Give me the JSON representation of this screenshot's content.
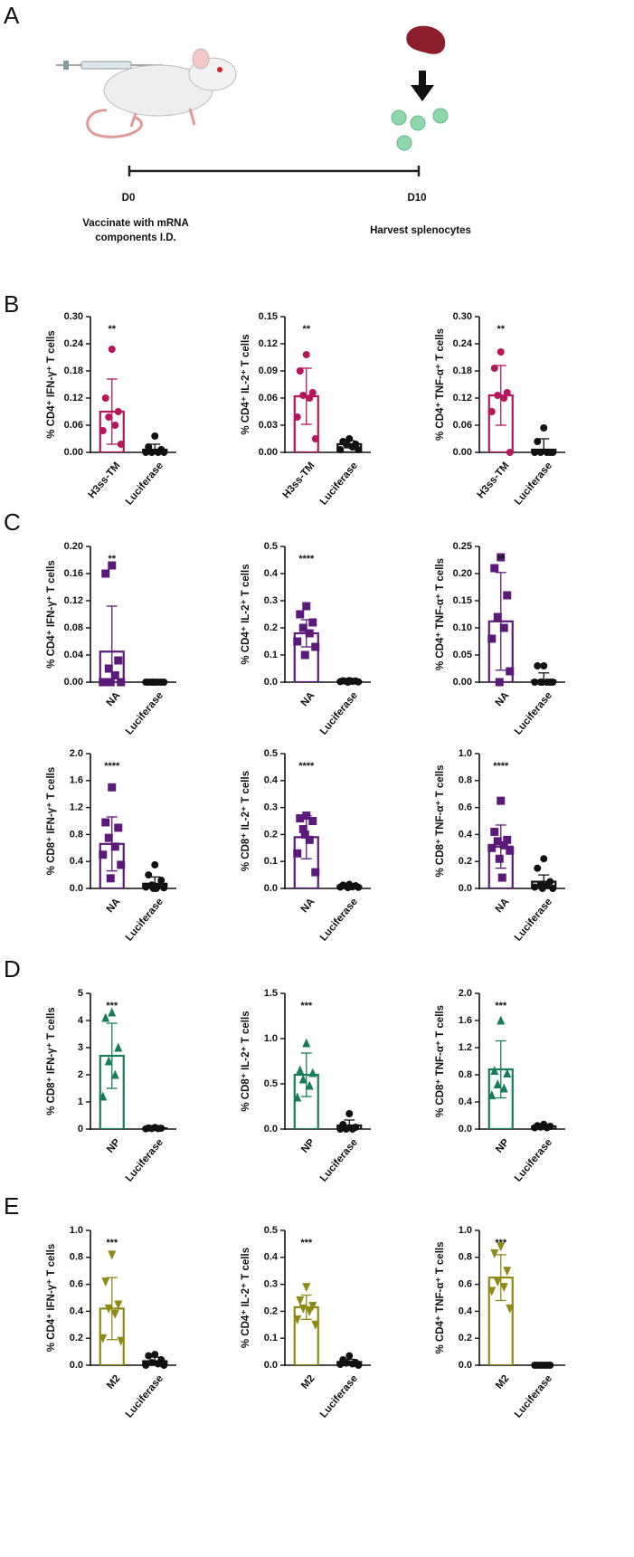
{
  "panel_labels": [
    "A",
    "B",
    "C",
    "D",
    "E"
  ],
  "diagram": {
    "start": "D0",
    "end": "D10",
    "start_caption": [
      "Vaccinate with mRNA",
      "components I.D."
    ],
    "end_caption": "Harvest splenocytes"
  },
  "chart_data": [
    {
      "type": "bar",
      "ylabel": "% CD4⁺ IFN-γ⁺ T cells",
      "categories": [
        "H3ss-TM",
        "Luciferase"
      ],
      "values": [
        0.09,
        0.006
      ],
      "errors": [
        0.072,
        0.012
      ],
      "points": [
        [
          0.228,
          0.12,
          0.09,
          0.078,
          0.06,
          0.048,
          0.018
        ],
        [
          0.036,
          0.012,
          0.006,
          0,
          0,
          0,
          0
        ]
      ],
      "colors": [
        "#b5175a",
        "#111111"
      ],
      "markers": [
        "circle",
        "circle"
      ],
      "annotation": "**",
      "ylim": [
        0,
        0.3
      ],
      "yticks": [
        {
          "value": 0,
          "label": "0.00"
        },
        {
          "value": 0.06,
          "label": "0.06"
        },
        {
          "value": 0.12,
          "label": "0.12"
        },
        {
          "value": 0.18,
          "label": "0.18"
        },
        {
          "value": 0.24,
          "label": "0.24"
        },
        {
          "value": 0.3,
          "label": "0.30"
        }
      ]
    },
    {
      "type": "bar",
      "ylabel": "% CD4⁺ IL-2⁺ T cells",
      "categories": [
        "H3ss-TM",
        "Luciferase"
      ],
      "values": [
        0.062,
        0.009
      ],
      "errors": [
        0.031,
        0.004
      ],
      "points": [
        [
          0.108,
          0.09,
          0.066,
          0.063,
          0.06,
          0.039,
          0.015
        ],
        [
          0.015,
          0.012,
          0.009,
          0.009,
          0.006,
          0.003,
          0.003
        ]
      ],
      "colors": [
        "#b5175a",
        "#111111"
      ],
      "markers": [
        "circle",
        "circle"
      ],
      "annotation": "**",
      "ylim": [
        0,
        0.15
      ],
      "yticks": [
        {
          "value": 0,
          "label": "0.00"
        },
        {
          "value": 0.03,
          "label": "0.03"
        },
        {
          "value": 0.06,
          "label": "0.06"
        },
        {
          "value": 0.09,
          "label": "0.09"
        },
        {
          "value": 0.12,
          "label": "0.12"
        },
        {
          "value": 0.15,
          "label": "0.15"
        }
      ]
    },
    {
      "type": "bar",
      "ylabel": "% CD4⁺ TNF-α⁺ T cells",
      "categories": [
        "H3ss-TM",
        "Luciferase"
      ],
      "values": [
        0.126,
        0.006
      ],
      "errors": [
        0.066,
        0.024
      ],
      "points": [
        [
          0.222,
          0.186,
          0.132,
          0.126,
          0.12,
          0.09,
          0
        ],
        [
          0.054,
          0.024,
          0,
          0,
          0,
          0,
          0
        ]
      ],
      "colors": [
        "#b5175a",
        "#111111"
      ],
      "markers": [
        "circle",
        "circle"
      ],
      "annotation": "**",
      "ylim": [
        0,
        0.3
      ],
      "yticks": [
        {
          "value": 0,
          "label": "0.00"
        },
        {
          "value": 0.06,
          "label": "0.06"
        },
        {
          "value": 0.12,
          "label": "0.12"
        },
        {
          "value": 0.18,
          "label": "0.18"
        },
        {
          "value": 0.24,
          "label": "0.24"
        },
        {
          "value": 0.3,
          "label": "0.30"
        }
      ]
    },
    {
      "type": "bar",
      "ylabel": "% CD4⁺ IFN-γ⁺ T cells",
      "categories": [
        "NA",
        "Luciferase"
      ],
      "values": [
        0.045,
        0
      ],
      "errors": [
        0.067,
        0
      ],
      "points": [
        [
          0.172,
          0.16,
          0.032,
          0.02,
          0.01,
          0,
          0,
          0
        ],
        [
          0,
          0,
          0,
          0,
          0,
          0,
          0,
          0
        ]
      ],
      "colors": [
        "#5b1a7a",
        "#111111"
      ],
      "markers": [
        "square",
        "circle"
      ],
      "annotation": "**",
      "ylim": [
        0,
        0.2
      ],
      "yticks": [
        {
          "value": 0,
          "label": "0.00"
        },
        {
          "value": 0.04,
          "label": "0.04"
        },
        {
          "value": 0.08,
          "label": "0.08"
        },
        {
          "value": 0.12,
          "label": "0.12"
        },
        {
          "value": 0.16,
          "label": "0.16"
        },
        {
          "value": 0.2,
          "label": "0.20"
        }
      ]
    },
    {
      "type": "bar",
      "ylabel": "% CD4⁺ IL-2⁺ T cells",
      "categories": [
        "NA",
        "Luciferase"
      ],
      "values": [
        0.18,
        0.003
      ],
      "errors": [
        0.05,
        0.002
      ],
      "points": [
        [
          0.28,
          0.25,
          0.22,
          0.2,
          0.18,
          0.15,
          0.13,
          0.1
        ],
        [
          0.006,
          0.005,
          0.004,
          0.003,
          0.003,
          0.002,
          0.001,
          0
        ]
      ],
      "colors": [
        "#5b1a7a",
        "#111111"
      ],
      "markers": [
        "square",
        "circle"
      ],
      "annotation": "****",
      "ylim": [
        0,
        0.5
      ],
      "yticks": [
        {
          "value": 0,
          "label": "0.0"
        },
        0.1,
        0.2,
        0.3,
        0.4,
        0.5
      ]
    },
    {
      "type": "bar",
      "ylabel": "% CD4⁺ TNF-α⁺ T cells",
      "categories": [
        "NA",
        "Luciferase"
      ],
      "values": [
        0.112,
        0.003
      ],
      "errors": [
        0.09,
        0.014
      ],
      "points": [
        [
          0.23,
          0.21,
          0.16,
          0.12,
          0.1,
          0.08,
          0.02,
          0
        ],
        [
          0.03,
          0.03,
          0,
          0,
          0,
          0,
          0,
          0
        ]
      ],
      "colors": [
        "#5b1a7a",
        "#111111"
      ],
      "markers": [
        "square",
        "circle"
      ],
      "annotation": "**",
      "ylim": [
        0,
        0.25
      ],
      "yticks": [
        {
          "value": 0,
          "label": "0.00"
        },
        {
          "value": 0.05,
          "label": "0.05"
        },
        {
          "value": 0.1,
          "label": "0.10"
        },
        {
          "value": 0.15,
          "label": "0.15"
        },
        {
          "value": 0.2,
          "label": "0.20"
        },
        {
          "value": 0.25,
          "label": "0.25"
        }
      ]
    },
    {
      "type": "bar",
      "ylabel": "% CD8⁺ IFN-γ⁺ T cells",
      "categories": [
        "NA",
        "Luciferase"
      ],
      "values": [
        0.66,
        0.07
      ],
      "errors": [
        0.4,
        0.1
      ],
      "points": [
        [
          1.5,
          0.98,
          0.9,
          0.75,
          0.62,
          0.5,
          0.35,
          0.15
        ],
        [
          0.35,
          0.2,
          0.12,
          0.05,
          0.03,
          0.02,
          0.01,
          0,
          0
        ]
      ],
      "colors": [
        "#5b1a7a",
        "#111111"
      ],
      "markers": [
        "square",
        "circle"
      ],
      "annotation": "****",
      "ylim": [
        0,
        2
      ],
      "yticks": [
        {
          "value": 0,
          "label": "0.0"
        },
        0.4,
        0.8,
        1.2,
        1.6,
        {
          "value": 2,
          "label": "2.0"
        }
      ]
    },
    {
      "type": "bar",
      "ylabel": "% CD8⁺ IL-2⁺ T cells",
      "categories": [
        "NA",
        "Luciferase"
      ],
      "values": [
        0.19,
        0.008
      ],
      "errors": [
        0.08,
        0.004
      ],
      "points": [
        [
          0.27,
          0.26,
          0.25,
          0.22,
          0.18,
          0.13,
          0.06,
          0.2
        ],
        [
          0.015,
          0.012,
          0.01,
          0.008,
          0.006,
          0.005,
          0.004,
          0.003
        ]
      ],
      "colors": [
        "#5b1a7a",
        "#111111"
      ],
      "markers": [
        "square",
        "circle"
      ],
      "annotation": "****",
      "ylim": [
        0,
        0.5
      ],
      "yticks": [
        {
          "value": 0,
          "label": "0.0"
        },
        0.1,
        0.2,
        0.3,
        0.4,
        0.5
      ]
    },
    {
      "type": "bar",
      "ylabel": "% CD8⁺ TNF-α⁺ T cells",
      "categories": [
        "NA",
        "Luciferase"
      ],
      "values": [
        0.31,
        0.05
      ],
      "errors": [
        0.16,
        0.05
      ],
      "points": [
        [
          0.65,
          0.42,
          0.36,
          0.35,
          0.32,
          0.3,
          0.28,
          0.22,
          0.08
        ],
        [
          0.22,
          0.15,
          0.05,
          0.03,
          0.02,
          0.01,
          0,
          0
        ]
      ],
      "colors": [
        "#5b1a7a",
        "#111111"
      ],
      "markers": [
        "square",
        "circle"
      ],
      "annotation": "****",
      "ylim": [
        0,
        1
      ],
      "yticks": [
        {
          "value": 0,
          "label": "0.0"
        },
        0.2,
        0.4,
        0.6,
        0.8,
        {
          "value": 1,
          "label": "1.0"
        }
      ]
    },
    {
      "type": "bar",
      "ylabel": "% CD8⁺ IFN-γ⁺ T cells",
      "categories": [
        "NP",
        "Luciferase"
      ],
      "values": [
        2.7,
        0.03
      ],
      "errors": [
        1.2,
        0.02
      ],
      "points": [
        [
          4.3,
          4.1,
          3,
          2.5,
          2,
          1.2
        ],
        [
          0.06,
          0.04,
          0.03,
          0.02,
          0.02,
          0.01
        ]
      ],
      "colors": [
        "#1a7d5a",
        "#111111"
      ],
      "markers": [
        "triangle",
        "circle"
      ],
      "annotation": "***",
      "ylim": [
        0,
        5
      ],
      "yticks": [
        0,
        1,
        2,
        3,
        4,
        5
      ]
    },
    {
      "type": "bar",
      "ylabel": "% CD8⁺ IL-2⁺ T cells",
      "categories": [
        "NP",
        "Luciferase"
      ],
      "values": [
        0.6,
        0.04
      ],
      "errors": [
        0.24,
        0.06
      ],
      "points": [
        [
          0.95,
          0.65,
          0.62,
          0.55,
          0.48,
          0.35
        ],
        [
          0.17,
          0.05,
          0.02,
          0,
          0,
          0
        ]
      ],
      "colors": [
        "#1a7d5a",
        "#111111"
      ],
      "markers": [
        "triangle",
        "circle"
      ],
      "annotation": "***",
      "ylim": [
        0,
        1.5
      ],
      "yticks": [
        {
          "value": 0,
          "label": "0.0"
        },
        0.5,
        {
          "value": 1,
          "label": "1.0"
        },
        1.5
      ]
    },
    {
      "type": "bar",
      "ylabel": "% CD8⁺ TNF-α⁺ T cells",
      "categories": [
        "NP",
        "Luciferase"
      ],
      "values": [
        0.88,
        0.04
      ],
      "errors": [
        0.42,
        0.02
      ],
      "points": [
        [
          1.6,
          0.86,
          0.82,
          0.66,
          0.6,
          0.5
        ],
        [
          0.07,
          0.05,
          0.04,
          0.03,
          0.02,
          0.02
        ]
      ],
      "colors": [
        "#1a7d5a",
        "#111111"
      ],
      "markers": [
        "triangle",
        "circle"
      ],
      "annotation": "***",
      "ylim": [
        0,
        2
      ],
      "yticks": [
        {
          "value": 0,
          "label": "0.0"
        },
        0.4,
        0.8,
        1.2,
        1.6,
        {
          "value": 2,
          "label": "2.0"
        }
      ]
    },
    {
      "type": "bar",
      "ylabel": "% CD4⁺ IFN-γ⁺ T cells",
      "categories": [
        "M2",
        "Luciferase"
      ],
      "values": [
        0.42,
        0.03
      ],
      "errors": [
        0.23,
        0.03
      ],
      "points": [
        [
          0.82,
          0.62,
          0.45,
          0.42,
          0.38,
          0.2,
          0.18
        ],
        [
          0.08,
          0.07,
          0.04,
          0.02,
          0.01,
          0,
          0
        ]
      ],
      "colors": [
        "#8f8a16",
        "#111111"
      ],
      "markers": [
        "triangle-down",
        "circle"
      ],
      "annotation": "***",
      "ylim": [
        0,
        1
      ],
      "yticks": [
        {
          "value": 0,
          "label": "0.0"
        },
        0.2,
        0.4,
        0.6,
        0.8,
        {
          "value": 1,
          "label": "1.0"
        }
      ]
    },
    {
      "type": "bar",
      "ylabel": "% CD4⁺ IL-2⁺ T cells",
      "categories": [
        "M2",
        "Luciferase"
      ],
      "values": [
        0.215,
        0.012
      ],
      "errors": [
        0.045,
        0.01
      ],
      "points": [
        [
          0.29,
          0.24,
          0.22,
          0.21,
          0.2,
          0.17,
          0.15
        ],
        [
          0.035,
          0.02,
          0.01,
          0.008,
          0.005,
          0.003,
          0
        ]
      ],
      "colors": [
        "#8f8a16",
        "#111111"
      ],
      "markers": [
        "triangle-down",
        "circle"
      ],
      "annotation": "***",
      "ylim": [
        0,
        0.5
      ],
      "yticks": [
        {
          "value": 0,
          "label": "0.0"
        },
        0.1,
        0.2,
        0.3,
        0.4,
        0.5
      ]
    },
    {
      "type": "bar",
      "ylabel": "% CD4⁺ TNF-α⁺ T cells",
      "categories": [
        "M2",
        "Luciferase"
      ],
      "values": [
        0.65,
        0
      ],
      "errors": [
        0.17,
        0
      ],
      "points": [
        [
          0.88,
          0.83,
          0.7,
          0.62,
          0.58,
          0.55,
          0.42
        ],
        [
          0,
          0,
          0,
          0,
          0,
          0
        ]
      ],
      "colors": [
        "#8f8a16",
        "#111111"
      ],
      "markers": [
        "triangle-down",
        "circle"
      ],
      "annotation": "***",
      "ylim": [
        0,
        1
      ],
      "yticks": [
        {
          "value": 0,
          "label": "0.0"
        },
        0.2,
        0.4,
        0.6,
        0.8,
        {
          "value": 1,
          "label": "1.0"
        }
      ]
    }
  ]
}
